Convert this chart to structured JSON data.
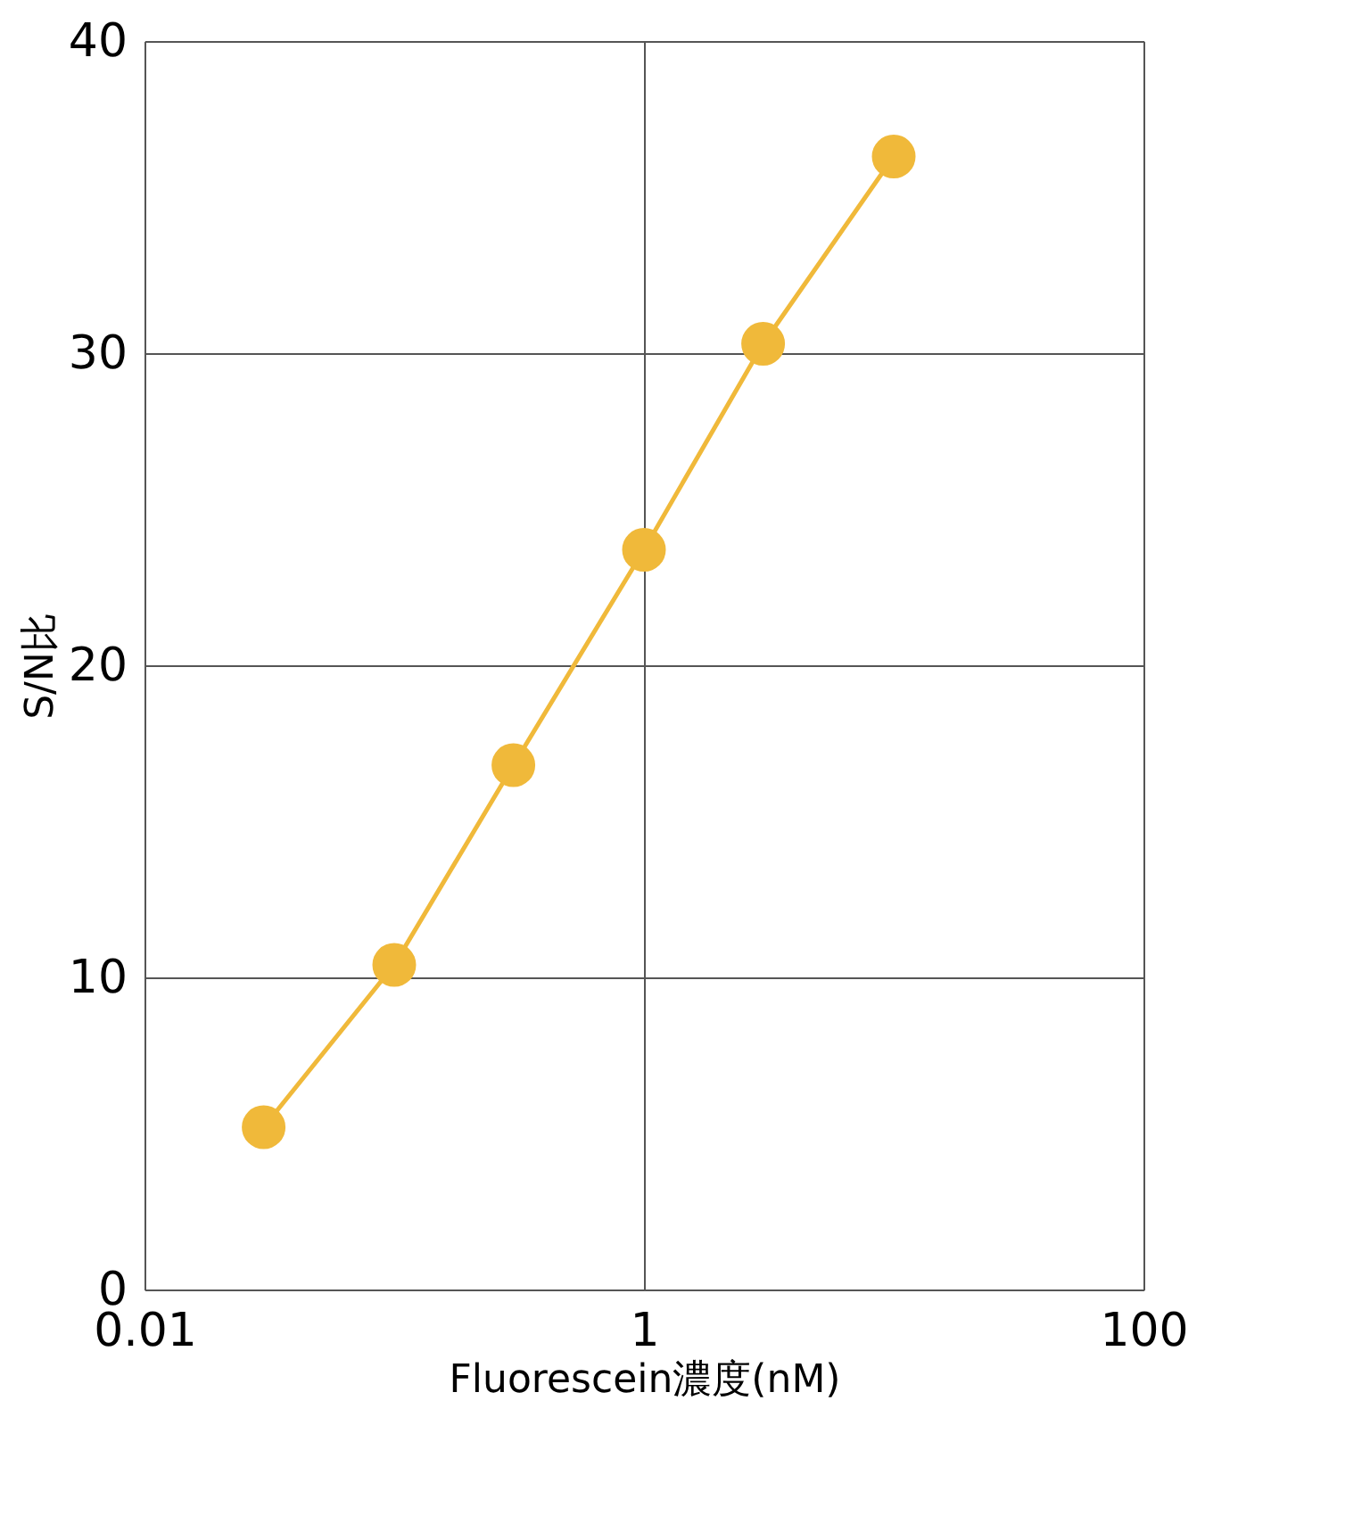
{
  "chart_data": {
    "type": "line",
    "xlabel": "Fluorescein濃度(nM)",
    "ylabel": "S/N比",
    "x": [
      0.03,
      0.1,
      0.3,
      1,
      3,
      10
    ],
    "series": [
      {
        "color": "#f0b93a",
        "values": [
          5.2,
          10.4,
          16.8,
          23.7,
          30.3,
          36.3
        ]
      }
    ],
    "log": "x",
    "xlim": [
      0.01,
      100
    ],
    "xticks": [
      0.01,
      1,
      100
    ],
    "ylim": [
      0,
      40
    ],
    "yticks": [
      0,
      10,
      20,
      30,
      40
    ],
    "grid": true,
    "marker": "circle",
    "line_style": "solid"
  }
}
